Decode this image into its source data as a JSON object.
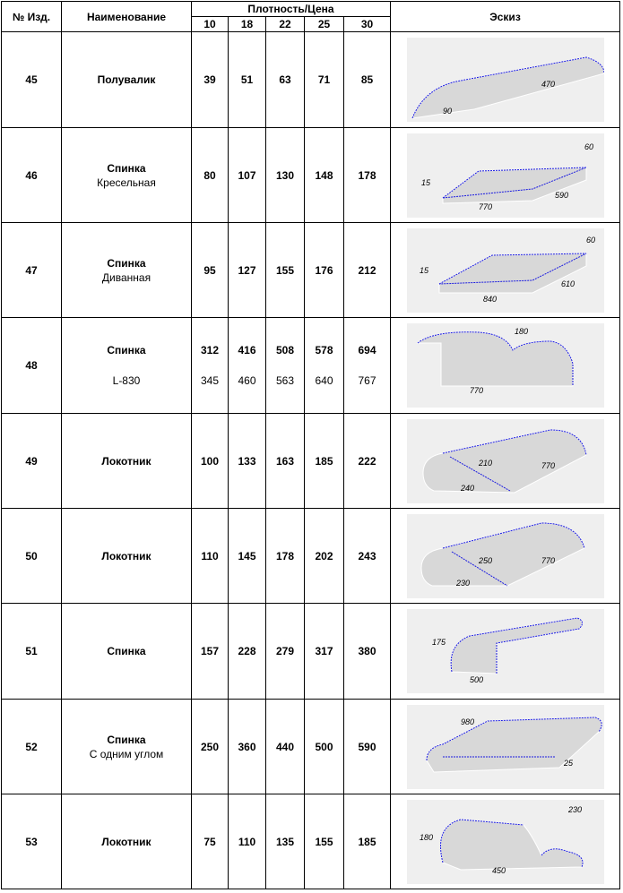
{
  "headers": {
    "no": "№ Изд.",
    "name": "Наименование",
    "density_group": "Плотность/Цена",
    "densities": [
      "10",
      "18",
      "22",
      "25",
      "30"
    ],
    "sketch": "Эскиз"
  },
  "rows": [
    {
      "no": "45",
      "name": "Полувалик",
      "sub": "",
      "prices": [
        "39",
        "51",
        "63",
        "71",
        "85"
      ],
      "prices2": [],
      "dims": [
        "470",
        "90"
      ],
      "icon": "half-bolster-sketch"
    },
    {
      "no": "46",
      "name": "Спинка",
      "sub": "Кресельная",
      "prices": [
        "80",
        "107",
        "130",
        "148",
        "178"
      ],
      "prices2": [],
      "dims": [
        "60",
        "15",
        "770",
        "590"
      ],
      "icon": "armchair-back-sketch"
    },
    {
      "no": "47",
      "name": "Спинка",
      "sub": "Диванная",
      "prices": [
        "95",
        "127",
        "155",
        "176",
        "212"
      ],
      "prices2": [],
      "dims": [
        "60",
        "15",
        "840",
        "610"
      ],
      "icon": "sofa-back-sketch"
    },
    {
      "no": "48",
      "name": "Спинка",
      "sub": "L-830",
      "prices": [
        "312",
        "416",
        "508",
        "578",
        "694"
      ],
      "prices2": [
        "345",
        "460",
        "563",
        "640",
        "767"
      ],
      "dims": [
        "180",
        "770"
      ],
      "icon": "back-l830-sketch"
    },
    {
      "no": "49",
      "name": "Локотник",
      "sub": "",
      "prices": [
        "100",
        "133",
        "163",
        "185",
        "222"
      ],
      "prices2": [],
      "dims": [
        "210",
        "240",
        "770"
      ],
      "icon": "armrest-sketch"
    },
    {
      "no": "50",
      "name": "Локотник",
      "sub": "",
      "prices": [
        "110",
        "145",
        "178",
        "202",
        "243"
      ],
      "prices2": [],
      "dims": [
        "250",
        "230",
        "770"
      ],
      "icon": "armrest-sketch"
    },
    {
      "no": "51",
      "name": "Спинка",
      "sub": "",
      "prices": [
        "157",
        "228",
        "279",
        "317",
        "380"
      ],
      "prices2": [],
      "dims": [
        "175",
        "500"
      ],
      "icon": "back-rolled-sketch"
    },
    {
      "no": "52",
      "name": "Спинка",
      "sub": "С одним углом",
      "prices": [
        "250",
        "360",
        "440",
        "500",
        "590"
      ],
      "prices2": [],
      "dims": [
        "980",
        "25"
      ],
      "icon": "back-one-corner-sketch"
    },
    {
      "no": "53",
      "name": "Локотник",
      "sub": "",
      "prices": [
        "75",
        "110",
        "135",
        "155",
        "185"
      ],
      "prices2": [],
      "dims": [
        "230",
        "180",
        "450"
      ],
      "icon": "armrest-curved-sketch"
    }
  ]
}
